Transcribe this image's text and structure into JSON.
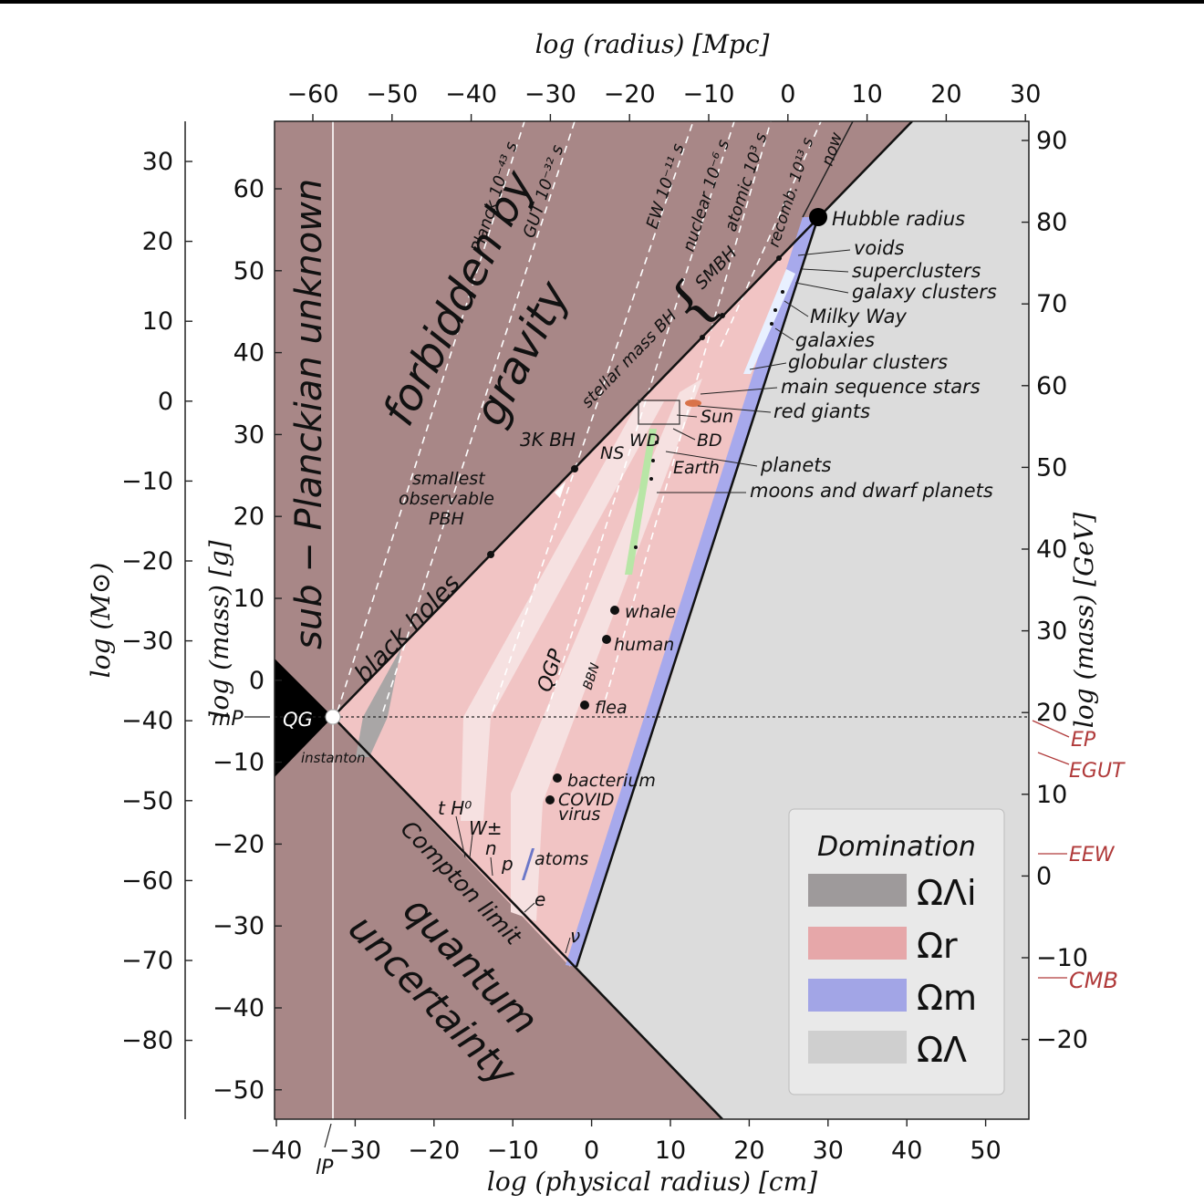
{
  "axes": {
    "top_title": "log (radius) [Mpc]",
    "bottom_title": "log (physical radius) [cm]",
    "left_outer_title": "log (M⊙)",
    "left_inner_title": "log (mass) [g]",
    "right_title": "log (mass) [GeV]",
    "top_ticks": [
      "−60",
      "−50",
      "−40",
      "−30",
      "−20",
      "−10",
      "0",
      "10",
      "20",
      "30"
    ],
    "bottom_ticks": [
      "−40",
      "−30",
      "−20",
      "−10",
      "0",
      "10",
      "20",
      "30",
      "40",
      "50"
    ],
    "left_outer_ticks": [
      "30",
      "20",
      "10",
      "0",
      "−10",
      "−20",
      "−30",
      "−40",
      "−50",
      "−60",
      "−70",
      "−80"
    ],
    "left_inner_ticks": [
      "60",
      "50",
      "40",
      "30",
      "20",
      "10",
      "0",
      "−10",
      "−20",
      "−30",
      "−40",
      "−50"
    ],
    "right_ticks": [
      "90",
      "80",
      "70",
      "60",
      "50",
      "40",
      "30",
      "20",
      "10",
      "0",
      "−10",
      "−20"
    ]
  },
  "regions": {
    "sub_planckian": "sub − Planckian unknown",
    "forbidden_1": "forbidden by",
    "forbidden_2": "gravity",
    "quantum_1": "quantum",
    "quantum_2": "uncertainty",
    "black_holes": "black holes",
    "compton": "Compton limit",
    "qgp": "QGP",
    "bbn": "BBN",
    "qg": "QG",
    "instanton": "instanton"
  },
  "epochs": {
    "planck": "Planck 10⁻⁴³ s",
    "gut": "GUT 10⁻³² s",
    "ew": "EW 10⁻¹¹ s",
    "nuclear": "nuclear 10⁻⁶ s",
    "atomic": "atomic 10³ s",
    "recomb": "recomb. 10¹³ s",
    "now": "now"
  },
  "objects": {
    "hubble": "Hubble radius",
    "voids": "voids",
    "superclusters": "superclusters",
    "galaxy_clusters": "galaxy clusters",
    "milky_way": "Milky Way",
    "galaxies": "galaxies",
    "globular": "globular clusters",
    "main_seq": "main sequence stars",
    "red_giants": "red giants",
    "sun": "Sun",
    "bd": "BD",
    "ns": "NS",
    "wd": "WD",
    "earth": "Earth",
    "planets": "planets",
    "moons": "moons and dwarf planets",
    "smbh": "SMBH",
    "stellar_bh": "stellar mass BH",
    "bh3k": "3K BH",
    "pbh_1": "smallest",
    "pbh_2": "observable",
    "pbh_3": "PBH",
    "whale": "whale",
    "human": "human",
    "flea": "flea",
    "bacterium": "bacterium",
    "covid_1": "COVID",
    "covid_2": "virus",
    "atoms": "atoms",
    "th0": "t H⁰",
    "wpm": "W±",
    "n": "n",
    "p": "p",
    "e": "e",
    "nu": "ν"
  },
  "markers": {
    "mp": "mP",
    "lp": "lP",
    "ep": "EP",
    "egut": "EGUT",
    "eew": "EEW",
    "cmb": "CMB"
  },
  "legend": {
    "title": "Domination",
    "items": [
      {
        "label": "ΩΛi",
        "color": "#9e9a9b"
      },
      {
        "label": "Ωr",
        "color": "#e6a7a9"
      },
      {
        "label": "Ωm",
        "color": "#a2a5e6"
      },
      {
        "label": "ΩΛ",
        "color": "#cfcfcf"
      }
    ]
  },
  "colors": {
    "forbidden": "#a88787",
    "radiation": "#f1c4c4",
    "radiation_light": "#f6e1e1",
    "matter": "#a7a9ec",
    "lambda": "#dcdcdc",
    "lambda_i": "#a9a6a6",
    "accent_red": "#b03a3a"
  }
}
